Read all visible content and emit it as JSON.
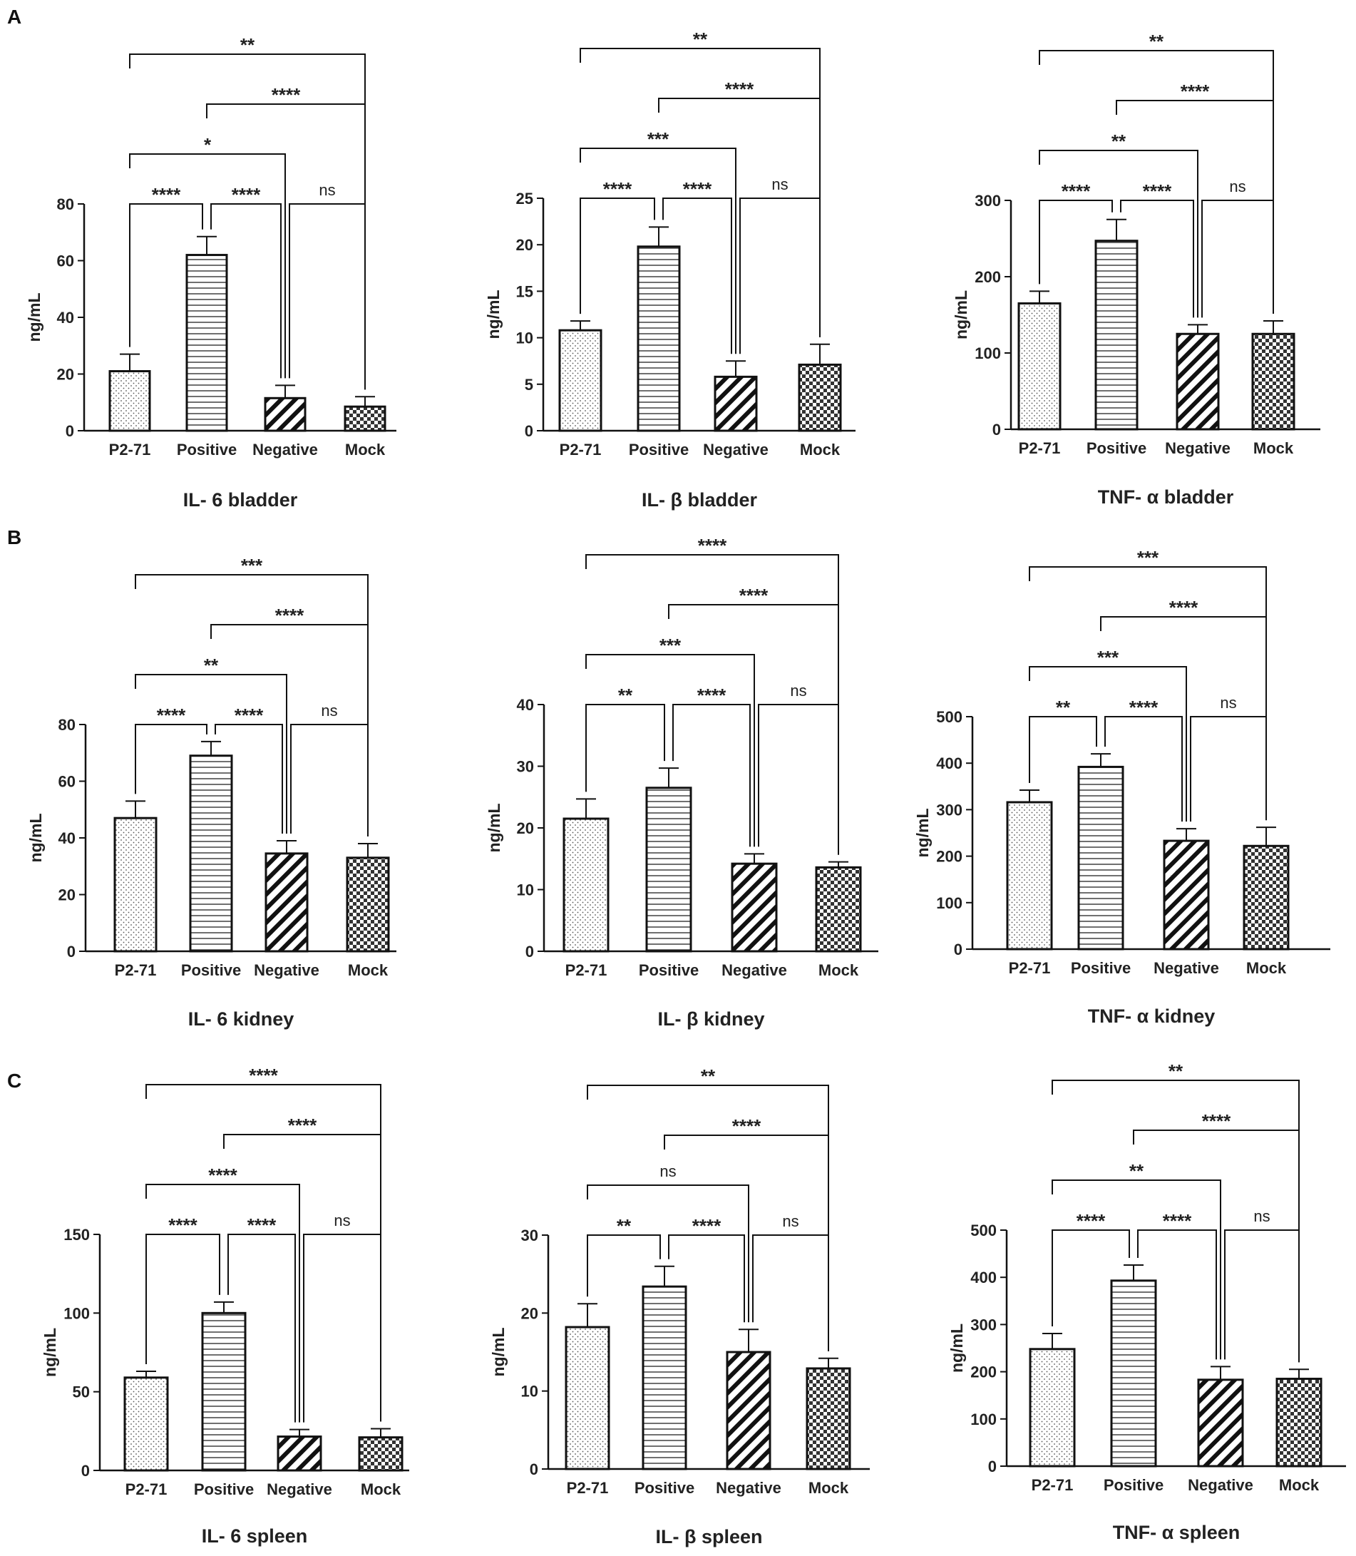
{
  "figure": {
    "panel_labels": [
      "A",
      "B",
      "C"
    ],
    "bar_colors": {
      "stroke": "#111111",
      "fill_bg": "#ffffff",
      "checker": "#333333"
    },
    "patterns": [
      "dots",
      "horizontal",
      "diagonal",
      "checker"
    ]
  },
  "chart_data": [
    {
      "type": "bar",
      "title": "IL- 6 bladder",
      "ylabel": "ng/mL",
      "categories": [
        "P2-71",
        "Positive",
        "Negative",
        "Mock"
      ],
      "values": [
        21,
        62,
        11.5,
        8.5
      ],
      "errors": [
        6,
        6.5,
        4.5,
        3.5
      ],
      "ylim": [
        0,
        80
      ],
      "yticks": [
        0,
        20,
        40,
        60,
        80
      ],
      "comparisons": [
        {
          "a": 0,
          "b": 1,
          "label": "****"
        },
        {
          "a": 1,
          "b": 2,
          "label": "****"
        },
        {
          "a": 2,
          "b": 3,
          "label": "ns"
        },
        {
          "a": 0,
          "b": 2,
          "label": "*"
        },
        {
          "a": 1,
          "b": 3,
          "label": "****"
        },
        {
          "a": 0,
          "b": 3,
          "label": "**"
        }
      ]
    },
    {
      "type": "bar",
      "title": "IL- β bladder",
      "ylabel": "ng/mL",
      "categories": [
        "P2-71",
        "Positive",
        "Negative",
        "Mock"
      ],
      "values": [
        10.8,
        19.8,
        5.8,
        7.1
      ],
      "errors": [
        1.0,
        2.1,
        1.7,
        2.2
      ],
      "ylim": [
        0,
        25
      ],
      "yticks": [
        0,
        5,
        10,
        15,
        20,
        25
      ],
      "comparisons": [
        {
          "a": 0,
          "b": 1,
          "label": "****"
        },
        {
          "a": 1,
          "b": 2,
          "label": "****"
        },
        {
          "a": 2,
          "b": 3,
          "label": "ns"
        },
        {
          "a": 0,
          "b": 2,
          "label": "***"
        },
        {
          "a": 1,
          "b": 3,
          "label": "****"
        },
        {
          "a": 0,
          "b": 3,
          "label": "**"
        }
      ]
    },
    {
      "type": "bar",
      "title": "TNF- α bladder",
      "ylabel": "ng/mL",
      "categories": [
        "P2-71",
        "Positive",
        "Negative",
        "Mock"
      ],
      "values": [
        165,
        247,
        125,
        125
      ],
      "errors": [
        16,
        28,
        12,
        17
      ],
      "ylim": [
        0,
        300
      ],
      "yticks": [
        0,
        100,
        200,
        300
      ],
      "comparisons": [
        {
          "a": 0,
          "b": 1,
          "label": "****"
        },
        {
          "a": 1,
          "b": 2,
          "label": "****"
        },
        {
          "a": 2,
          "b": 3,
          "label": "ns"
        },
        {
          "a": 0,
          "b": 2,
          "label": "**"
        },
        {
          "a": 1,
          "b": 3,
          "label": "****"
        },
        {
          "a": 0,
          "b": 3,
          "label": "**"
        }
      ]
    },
    {
      "type": "bar",
      "title": "IL- 6 kidney",
      "ylabel": "ng/mL",
      "categories": [
        "P2-71",
        "Positive",
        "Negative",
        "Mock"
      ],
      "values": [
        47,
        69,
        34.5,
        33
      ],
      "errors": [
        6,
        5,
        4.5,
        5
      ],
      "ylim": [
        0,
        80
      ],
      "yticks": [
        0,
        20,
        40,
        60,
        80
      ],
      "comparisons": [
        {
          "a": 0,
          "b": 1,
          "label": "****"
        },
        {
          "a": 1,
          "b": 2,
          "label": "****"
        },
        {
          "a": 2,
          "b": 3,
          "label": "ns"
        },
        {
          "a": 0,
          "b": 2,
          "label": "**"
        },
        {
          "a": 1,
          "b": 3,
          "label": "****"
        },
        {
          "a": 0,
          "b": 3,
          "label": "***"
        }
      ]
    },
    {
      "type": "bar",
      "title": "IL- β kidney",
      "ylabel": "ng/mL",
      "categories": [
        "P2-71",
        "Positive",
        "Negative",
        "Mock"
      ],
      "values": [
        21.5,
        26.5,
        14.2,
        13.6
      ],
      "errors": [
        3.2,
        3.2,
        1.6,
        0.9
      ],
      "ylim": [
        0,
        40
      ],
      "yticks": [
        0,
        10,
        20,
        30,
        40
      ],
      "comparisons": [
        {
          "a": 0,
          "b": 1,
          "label": "**"
        },
        {
          "a": 1,
          "b": 2,
          "label": "****"
        },
        {
          "a": 2,
          "b": 3,
          "label": "ns"
        },
        {
          "a": 0,
          "b": 2,
          "label": "***"
        },
        {
          "a": 1,
          "b": 3,
          "label": "****"
        },
        {
          "a": 0,
          "b": 3,
          "label": "****"
        }
      ]
    },
    {
      "type": "bar",
      "title": "TNF- α kidney",
      "ylabel": "ng/mL",
      "categories": [
        "P2-71",
        "Positive",
        "Negative",
        "Mock"
      ],
      "values": [
        316,
        392,
        233,
        222
      ],
      "errors": [
        26,
        28,
        26,
        40
      ],
      "ylim": [
        0,
        500
      ],
      "yticks": [
        0,
        100,
        200,
        300,
        400,
        500
      ],
      "comparisons": [
        {
          "a": 0,
          "b": 1,
          "label": "**"
        },
        {
          "a": 1,
          "b": 2,
          "label": "****"
        },
        {
          "a": 2,
          "b": 3,
          "label": "ns"
        },
        {
          "a": 0,
          "b": 2,
          "label": "***"
        },
        {
          "a": 1,
          "b": 3,
          "label": "****"
        },
        {
          "a": 0,
          "b": 3,
          "label": "***"
        }
      ]
    },
    {
      "type": "bar",
      "title": "IL- 6 spleen",
      "ylabel": "ng/mL",
      "categories": [
        "P2-71",
        "Positive",
        "Negative",
        "Mock"
      ],
      "values": [
        59,
        100,
        21.5,
        21
      ],
      "errors": [
        4,
        7,
        4.5,
        5.5
      ],
      "ylim": [
        0,
        150
      ],
      "yticks": [
        0,
        50,
        100,
        150
      ],
      "comparisons": [
        {
          "a": 0,
          "b": 1,
          "label": "****"
        },
        {
          "a": 1,
          "b": 2,
          "label": "****"
        },
        {
          "a": 2,
          "b": 3,
          "label": "ns"
        },
        {
          "a": 0,
          "b": 2,
          "label": "****"
        },
        {
          "a": 1,
          "b": 3,
          "label": "****"
        },
        {
          "a": 0,
          "b": 3,
          "label": "****"
        }
      ]
    },
    {
      "type": "bar",
      "title": "IL- β spleen",
      "ylabel": "ng/mL",
      "categories": [
        "P2-71",
        "Positive",
        "Negative",
        "Mock"
      ],
      "values": [
        18.2,
        23.4,
        15.0,
        12.9
      ],
      "errors": [
        3.0,
        2.6,
        2.9,
        1.3
      ],
      "ylim": [
        0,
        30
      ],
      "yticks": [
        0,
        10,
        20,
        30
      ],
      "comparisons": [
        {
          "a": 0,
          "b": 1,
          "label": "**"
        },
        {
          "a": 1,
          "b": 2,
          "label": "****"
        },
        {
          "a": 2,
          "b": 3,
          "label": "ns"
        },
        {
          "a": 0,
          "b": 2,
          "label": "ns"
        },
        {
          "a": 1,
          "b": 3,
          "label": "****"
        },
        {
          "a": 0,
          "b": 3,
          "label": "**"
        }
      ]
    },
    {
      "type": "bar",
      "title": "TNF- α spleen",
      "ylabel": "ng/mL",
      "categories": [
        "P2-71",
        "Positive",
        "Negative",
        "Mock"
      ],
      "values": [
        248,
        393,
        183,
        185
      ],
      "errors": [
        33,
        33,
        28,
        20
      ],
      "ylim": [
        0,
        500
      ],
      "yticks": [
        0,
        100,
        200,
        300,
        400,
        500
      ],
      "comparisons": [
        {
          "a": 0,
          "b": 1,
          "label": "****"
        },
        {
          "a": 1,
          "b": 2,
          "label": "****"
        },
        {
          "a": 2,
          "b": 3,
          "label": "ns"
        },
        {
          "a": 0,
          "b": 2,
          "label": "**"
        },
        {
          "a": 1,
          "b": 3,
          "label": "****"
        },
        {
          "a": 0,
          "b": 3,
          "label": "**"
        }
      ]
    }
  ]
}
